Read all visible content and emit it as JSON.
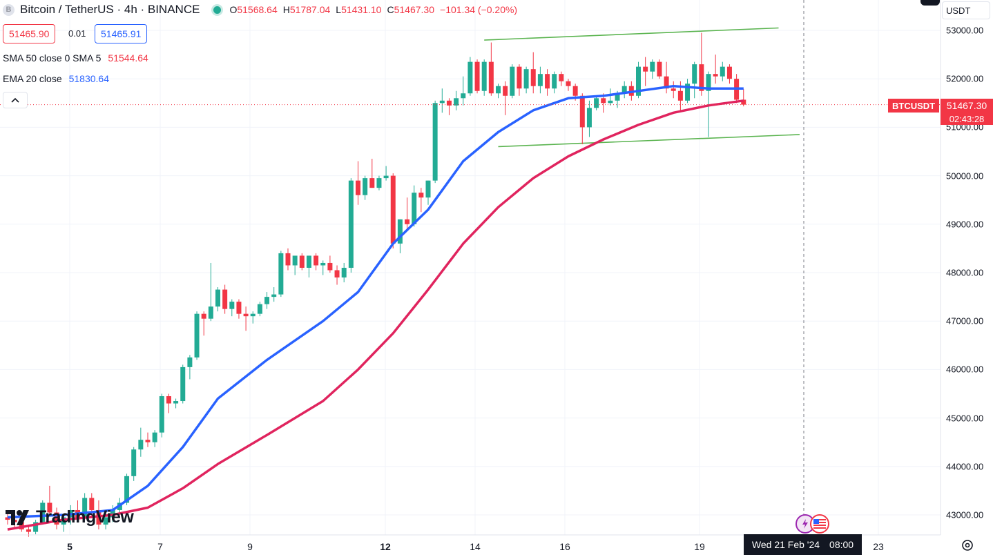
{
  "header": {
    "symbol_icon": "B",
    "title": "Bitcoin / TetherUS · 4h · BINANCE",
    "ohlc": [
      {
        "k": "O",
        "v": "51568.64"
      },
      {
        "k": "H",
        "v": "51787.04"
      },
      {
        "k": "L",
        "v": "51431.10"
      },
      {
        "k": "C",
        "v": "51467.30"
      }
    ],
    "change": "−101.34 (−0.20%)",
    "sell_price": "51465.90",
    "spread": "0.01",
    "buy_price": "51465.91"
  },
  "indicators": {
    "sma_label": "SMA 50 close 0 SMA 5",
    "sma_value": "51544.64",
    "ema_label": "EMA 20 close",
    "ema_value": "51830.64",
    "collapse_icon": "chevron-up-icon"
  },
  "currency_label": "USDT",
  "price_tag": {
    "symbol": "BTCUSDT",
    "price": "51467.30",
    "countdown": "02:43:28"
  },
  "crosshair": {
    "date": "Wed 21 Feb '24",
    "time": "08:00"
  },
  "logo": "TradingView",
  "colors": {
    "up": "#22ab94",
    "down": "#f23645",
    "sma": "#e0245e",
    "ema": "#2962ff",
    "trendline": "#5bb450"
  },
  "chart_data": {
    "type": "candlestick",
    "title": "Bitcoin / TetherUS · 4h · BINANCE",
    "y_ticks": [
      "53000.00",
      "52000.00",
      "51000.00",
      "50000.00",
      "49000.00",
      "48000.00",
      "47000.00",
      "46000.00",
      "45000.00",
      "44000.00",
      "43000.00"
    ],
    "x_ticks": [
      "5",
      "7",
      "9",
      "12",
      "14",
      "16",
      "19",
      "23"
    ],
    "ylim": [
      42600,
      53450
    ],
    "x_index_range": [
      0,
      100
    ],
    "grid": true,
    "candles": [
      [
        0,
        42950,
        43050,
        42800,
        42900
      ],
      [
        1,
        42900,
        43000,
        42750,
        42850
      ],
      [
        2,
        42850,
        42950,
        42650,
        42700
      ],
      [
        3,
        42700,
        42800,
        42550,
        42650
      ],
      [
        4,
        42650,
        42900,
        42600,
        42850
      ],
      [
        5,
        42850,
        43300,
        42800,
        43250
      ],
      [
        6,
        43250,
        43600,
        43000,
        43050
      ],
      [
        7,
        43050,
        43150,
        42700,
        42800
      ],
      [
        8,
        42800,
        43000,
        42650,
        42950
      ],
      [
        9,
        42950,
        43200,
        42800,
        43100
      ],
      [
        10,
        43100,
        43300,
        42900,
        42950
      ],
      [
        11,
        42950,
        43450,
        42900,
        43350
      ],
      [
        12,
        43350,
        43450,
        42950,
        43100
      ],
      [
        13,
        43100,
        43300,
        42700,
        42800
      ],
      [
        14,
        42800,
        43050,
        42700,
        42950
      ],
      [
        15,
        42950,
        43200,
        42850,
        43100
      ],
      [
        16,
        43100,
        43350,
        43000,
        43250
      ],
      [
        17,
        43250,
        43850,
        43200,
        43800
      ],
      [
        18,
        43800,
        44400,
        43700,
        44350
      ],
      [
        19,
        44350,
        44800,
        44200,
        44550
      ],
      [
        20,
        44550,
        44700,
        44400,
        44500
      ],
      [
        21,
        44500,
        44750,
        44400,
        44700
      ],
      [
        22,
        44700,
        45500,
        44600,
        45450
      ],
      [
        23,
        45450,
        45500,
        45100,
        45300
      ],
      [
        24,
        45300,
        45400,
        45200,
        45350
      ],
      [
        25,
        45350,
        46100,
        45300,
        46050
      ],
      [
        26,
        46050,
        46300,
        45800,
        46250
      ],
      [
        27,
        46250,
        47200,
        46200,
        47150
      ],
      [
        28,
        47150,
        47200,
        46700,
        47050
      ],
      [
        29,
        47050,
        48200,
        47000,
        47300
      ],
      [
        30,
        47300,
        47700,
        47200,
        47650
      ],
      [
        31,
        47650,
        47750,
        47150,
        47250
      ],
      [
        32,
        47250,
        47450,
        47100,
        47400
      ],
      [
        33,
        47400,
        47450,
        47050,
        47150
      ],
      [
        34,
        47150,
        47300,
        46800,
        47100
      ],
      [
        35,
        47100,
        47200,
        46950,
        47150
      ],
      [
        36,
        47150,
        47400,
        47100,
        47350
      ],
      [
        37,
        47350,
        47600,
        47250,
        47500
      ],
      [
        38,
        47500,
        47700,
        47400,
        47550
      ],
      [
        39,
        47550,
        48450,
        47500,
        48400
      ],
      [
        40,
        48400,
        48500,
        48050,
        48150
      ],
      [
        41,
        48150,
        48300,
        47950,
        48350
      ],
      [
        42,
        48350,
        48400,
        48050,
        48100
      ],
      [
        43,
        48100,
        48350,
        47900,
        48350
      ],
      [
        44,
        48350,
        48400,
        48050,
        48150
      ],
      [
        45,
        48150,
        48250,
        47950,
        48200
      ],
      [
        46,
        48200,
        48350,
        48000,
        48050
      ],
      [
        47,
        48050,
        48150,
        47750,
        47900
      ],
      [
        48,
        47900,
        48200,
        47800,
        48100
      ],
      [
        49,
        48100,
        49950,
        48000,
        49900
      ],
      [
        50,
        49900,
        50300,
        49400,
        49600
      ],
      [
        51,
        49600,
        50000,
        49500,
        49950
      ],
      [
        52,
        49950,
        50350,
        49750,
        49750
      ],
      [
        53,
        49750,
        50000,
        49700,
        49950
      ],
      [
        54,
        49950,
        50200,
        49900,
        50000
      ],
      [
        55,
        50000,
        50050,
        48500,
        48600
      ],
      [
        56,
        48600,
        49100,
        48400,
        49100
      ],
      [
        57,
        49100,
        49550,
        48900,
        49000
      ],
      [
        58,
        49000,
        49800,
        48950,
        49650
      ],
      [
        59,
        49650,
        49750,
        49250,
        49550
      ],
      [
        60,
        49550,
        49900,
        49400,
        49900
      ],
      [
        61,
        49900,
        51550,
        49850,
        51500
      ],
      [
        62,
        51500,
        51800,
        51300,
        51550
      ],
      [
        63,
        51550,
        51600,
        51250,
        51450
      ],
      [
        64,
        51450,
        51750,
        51350,
        51600
      ],
      [
        65,
        51600,
        52050,
        51450,
        51700
      ],
      [
        66,
        51700,
        52450,
        51650,
        52350
      ],
      [
        67,
        52350,
        52400,
        51700,
        51750
      ],
      [
        68,
        51750,
        52400,
        51650,
        52350
      ],
      [
        69,
        52350,
        52750,
        51650,
        51700
      ],
      [
        70,
        51700,
        51900,
        51600,
        51850
      ],
      [
        71,
        51850,
        51950,
        51250,
        51650
      ],
      [
        72,
        51650,
        52300,
        51600,
        52250
      ],
      [
        73,
        52250,
        52300,
        51650,
        51800
      ],
      [
        74,
        51800,
        52250,
        51700,
        52200
      ],
      [
        75,
        52200,
        52550,
        51700,
        51850
      ],
      [
        76,
        51850,
        52250,
        51700,
        52100
      ],
      [
        77,
        52100,
        52200,
        51650,
        51800
      ],
      [
        78,
        51800,
        52150,
        51700,
        52100
      ],
      [
        79,
        52100,
        52150,
        51850,
        51950
      ],
      [
        80,
        51950,
        52000,
        51750,
        51850
      ],
      [
        81,
        51850,
        51900,
        51550,
        51650
      ],
      [
        82,
        51650,
        51700,
        50650,
        51000
      ],
      [
        83,
        51000,
        51550,
        50800,
        51400
      ],
      [
        84,
        51400,
        51650,
        51350,
        51600
      ],
      [
        85,
        51600,
        51700,
        51300,
        51500
      ],
      [
        86,
        51500,
        51800,
        51450,
        51550
      ],
      [
        87,
        51550,
        51750,
        51400,
        51700
      ],
      [
        88,
        51700,
        51950,
        51600,
        51850
      ],
      [
        89,
        51850,
        51950,
        51550,
        51650
      ],
      [
        90,
        51650,
        52350,
        51600,
        52250
      ],
      [
        91,
        52250,
        52450,
        51850,
        52150
      ],
      [
        92,
        52150,
        52400,
        52000,
        52350
      ],
      [
        93,
        52350,
        52400,
        52000,
        52050
      ],
      [
        94,
        52050,
        52350,
        51700,
        51800
      ],
      [
        95,
        51800,
        51950,
        51600,
        51750
      ],
      [
        96,
        51750,
        51950,
        51350,
        51550
      ],
      [
        97,
        51550,
        52000,
        51500,
        51900
      ],
      [
        98,
        51900,
        52350,
        51600,
        52300
      ],
      [
        99,
        52300,
        52950,
        51650,
        51750
      ],
      [
        100,
        51750,
        52150,
        50800,
        52100
      ],
      [
        101,
        52100,
        52500,
        51900,
        52050
      ],
      [
        102,
        52050,
        52350,
        51950,
        52250
      ],
      [
        103,
        52250,
        52300,
        51900,
        52000
      ],
      [
        104,
        52000,
        52100,
        51500,
        51568.64
      ],
      [
        105,
        51568.64,
        51787.04,
        51431.1,
        51467.3
      ]
    ],
    "ema_20": [
      [
        0,
        42950
      ],
      [
        8,
        43000
      ],
      [
        15,
        43100
      ],
      [
        20,
        43600
      ],
      [
        25,
        44400
      ],
      [
        30,
        45400
      ],
      [
        37,
        46200
      ],
      [
        45,
        47000
      ],
      [
        50,
        47600
      ],
      [
        55,
        48600
      ],
      [
        60,
        49300
      ],
      [
        65,
        50300
      ],
      [
        70,
        50900
      ],
      [
        75,
        51350
      ],
      [
        80,
        51600
      ],
      [
        85,
        51650
      ],
      [
        90,
        51750
      ],
      [
        95,
        51850
      ],
      [
        100,
        51800
      ],
      [
        105,
        51800
      ]
    ],
    "sma_50": [
      [
        0,
        42700
      ],
      [
        8,
        42900
      ],
      [
        15,
        43000
      ],
      [
        20,
        43150
      ],
      [
        25,
        43550
      ],
      [
        30,
        44050
      ],
      [
        37,
        44650
      ],
      [
        45,
        45350
      ],
      [
        50,
        46000
      ],
      [
        55,
        46750
      ],
      [
        60,
        47650
      ],
      [
        65,
        48600
      ],
      [
        70,
        49350
      ],
      [
        75,
        49950
      ],
      [
        80,
        50400
      ],
      [
        85,
        50750
      ],
      [
        90,
        51050
      ],
      [
        95,
        51300
      ],
      [
        100,
        51450
      ],
      [
        105,
        51550
      ]
    ],
    "trendlines": [
      {
        "from": [
          68,
          52800
        ],
        "to": [
          110,
          53050
        ]
      },
      {
        "from": [
          70,
          50600
        ],
        "to": [
          113,
          50850
        ]
      }
    ]
  }
}
